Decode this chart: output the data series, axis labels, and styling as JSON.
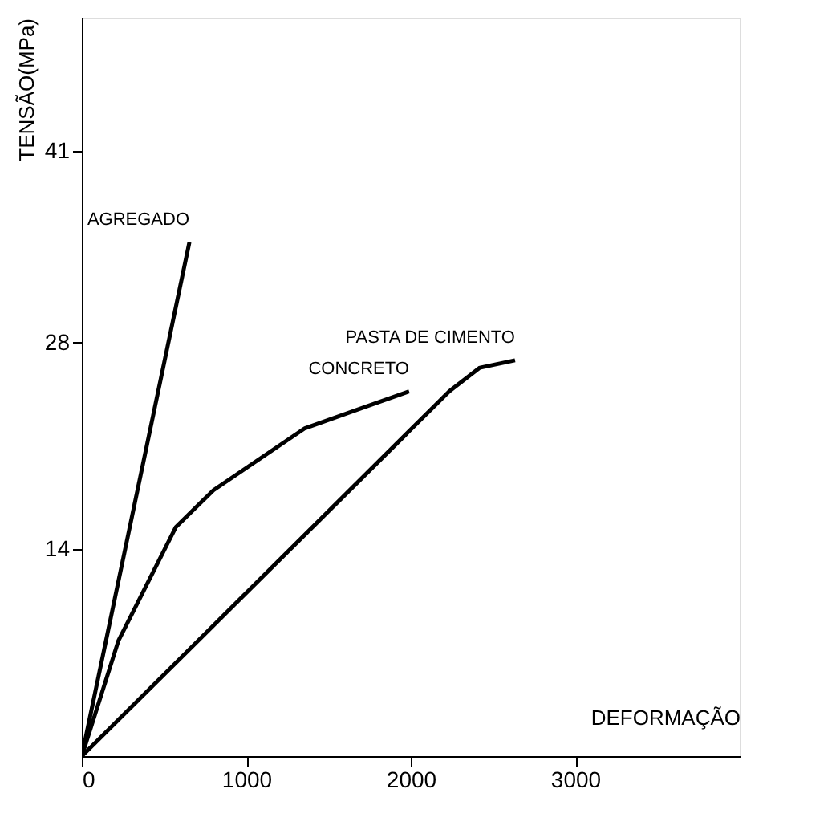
{
  "chart_data": {
    "type": "line",
    "xlabel": "DEFORMAÇÃO",
    "ylabel": "TENSÃO(MPa)",
    "xlim": [
      0,
      4000
    ],
    "ylim": [
      0,
      50
    ],
    "xticks": [
      0,
      1000,
      2000,
      3000
    ],
    "yticks": [
      14,
      28,
      41
    ],
    "grid": false,
    "marker": "none",
    "line_style": "solid",
    "series": [
      {
        "name": "AGREGADO",
        "color": "#000000",
        "x": [
          0,
          654
        ],
        "values": [
          0,
          34.8
        ]
      },
      {
        "name": "CONCRETO",
        "color": "#000000",
        "x": [
          0,
          222,
          571,
          800,
          1356,
          1990
        ],
        "values": [
          0,
          7.8,
          15.5,
          18.0,
          22.2,
          24.7
        ]
      },
      {
        "name": "PASTA DE CIMENTO",
        "color": "#000000",
        "x": [
          0,
          2234,
          2420,
          2634
        ],
        "values": [
          0,
          24.7,
          26.3,
          26.8
        ]
      }
    ]
  }
}
